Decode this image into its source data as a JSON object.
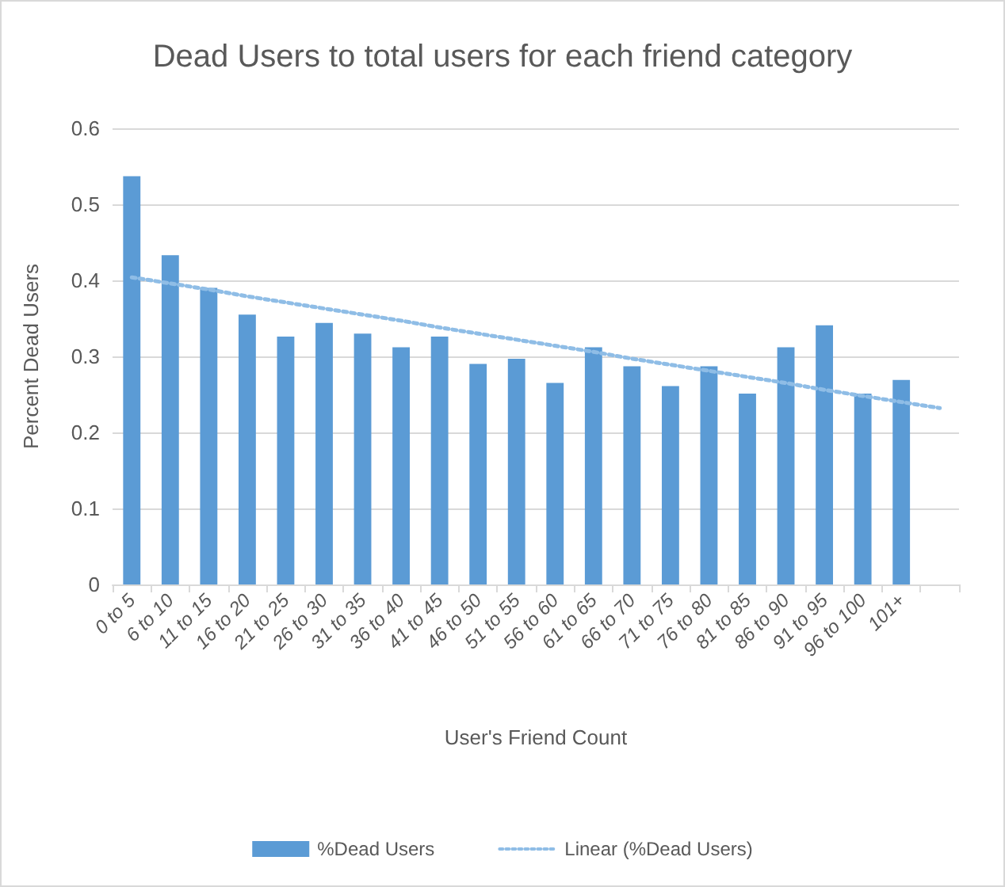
{
  "chart_data": {
    "type": "bar",
    "title": "Dead Users to total users for each friend category",
    "xlabel": "User's Friend Count",
    "ylabel": "Percent Dead Users",
    "categories": [
      "0 to 5",
      "6 to 10",
      "11 to 15",
      "16 to 20",
      "21 to 25",
      "26 to 30",
      "31 to 35",
      "36 to 40",
      "41 to 45",
      "46 to 50",
      "51 to 55",
      "56 to 60",
      "61 to 65",
      "66 to 70",
      "71 to 75",
      "76 to 80",
      "81 to 85",
      "86 to 90",
      "91 to 95",
      "96 to 100",
      "101+",
      null
    ],
    "series": [
      {
        "name": "%Dead Users",
        "color": "#5b9bd5",
        "values": [
          0.537,
          0.433,
          0.39,
          0.355,
          0.326,
          0.344,
          0.33,
          0.312,
          0.326,
          0.29,
          0.297,
          0.265,
          0.312,
          0.287,
          0.261,
          0.287,
          0.251,
          0.312,
          0.341,
          0.251,
          0.269,
          null
        ]
      },
      {
        "name": "Linear (%Dead Users)",
        "type": "line",
        "color": "#8fbde6",
        "line_style": "dotted",
        "marker": "none",
        "values": [
          0.404,
          0.396,
          0.388,
          0.379,
          0.371,
          0.363,
          0.355,
          0.347,
          0.338,
          0.33,
          0.322,
          0.314,
          0.306,
          0.297,
          0.289,
          0.281,
          0.273,
          0.265,
          0.256,
          0.248,
          0.24,
          0.232
        ]
      }
    ],
    "ylim": [
      0,
      0.6
    ],
    "yticks": [
      0,
      0.1,
      0.2,
      0.3,
      0.4,
      0.5,
      0.6
    ],
    "grid": "y",
    "legend": "bottom"
  }
}
